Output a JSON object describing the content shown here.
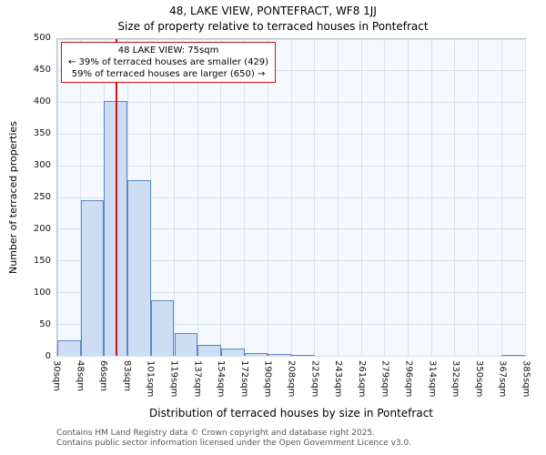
{
  "title": "48, LAKE VIEW, PONTEFRACT, WF8 1JJ",
  "annotation": {
    "line1": "48 LAKE VIEW: 75sqm",
    "line2": "← 39% of terraced houses are smaller (429)",
    "line3": "59% of terraced houses are larger (650) →"
  },
  "footer": {
    "line1": "Contains HM Land Registry data © Crown copyright and database right 2025.",
    "line2": "Contains public sector information licensed under the Open Government Licence v3.0."
  },
  "colors": {
    "bar_fill": "#cdddf3",
    "bar_border": "#5c88c6",
    "marker_line": "#cc1111",
    "annotation_border": "#cc1111",
    "grid": "#d9e1ef",
    "plot_bg": "#f5f8fd"
  },
  "chart_data": {
    "type": "bar",
    "title": "Size of property relative to terraced houses in Pontefract",
    "xlabel": "Distribution of terraced houses by size in Pontefract",
    "ylabel": "Number of terraced properties",
    "xlim": [
      30,
      385
    ],
    "ylim": [
      0,
      500
    ],
    "ytick_step": 50,
    "grid": true,
    "legend_position": "none",
    "categories": [
      "30sqm",
      "48sqm",
      "66sqm",
      "83sqm",
      "101sqm",
      "119sqm",
      "137sqm",
      "154sqm",
      "172sqm",
      "190sqm",
      "208sqm",
      "225sqm",
      "243sqm",
      "261sqm",
      "279sqm",
      "296sqm",
      "314sqm",
      "332sqm",
      "350sqm",
      "367sqm",
      "385sqm"
    ],
    "bin_edges": [
      30,
      48,
      66,
      83,
      101,
      119,
      137,
      154,
      172,
      190,
      208,
      225,
      243,
      261,
      279,
      296,
      314,
      332,
      350,
      367,
      385
    ],
    "values": [
      25,
      245,
      403,
      277,
      87,
      36,
      17,
      11,
      4,
      3,
      2,
      0,
      0,
      0,
      0,
      0,
      0,
      0,
      0,
      2
    ],
    "marker": {
      "value": 75,
      "label": "75sqm"
    }
  }
}
